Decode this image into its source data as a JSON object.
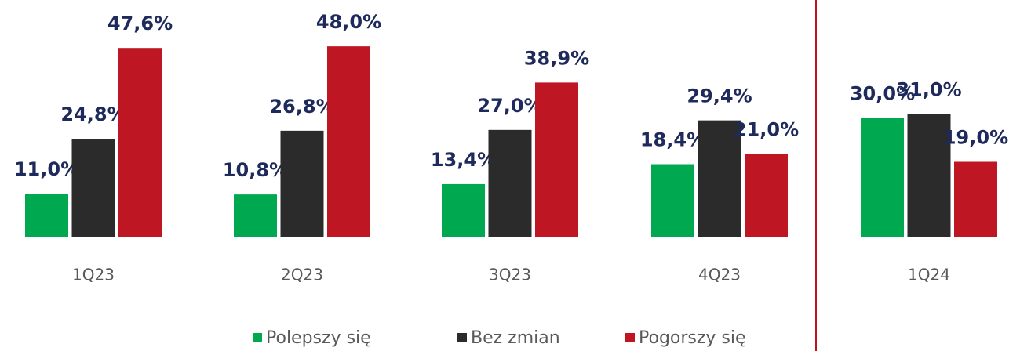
{
  "chart_data": {
    "type": "bar",
    "categories": [
      "1Q23",
      "2Q23",
      "3Q23",
      "4Q23",
      "1Q24"
    ],
    "series": [
      {
        "name": "Polepszy się",
        "color": "#00a94f",
        "values": [
          11.0,
          10.8,
          13.4,
          18.4,
          30.0
        ],
        "value_labels": [
          "11,0%",
          "10,8%",
          "13,4%",
          "18,4%",
          "30,0%"
        ]
      },
      {
        "name": "Bez zmian",
        "color": "#2b2b2b",
        "values": [
          24.8,
          26.8,
          27.0,
          29.4,
          31.0
        ],
        "value_labels": [
          "24,8%",
          "26,8%",
          "27,0%",
          "29,4%",
          "31,0%"
        ]
      },
      {
        "name": "Pogorszy się",
        "color": "#be1622",
        "values": [
          47.6,
          48.0,
          38.9,
          21.0,
          19.0
        ],
        "value_labels": [
          "47,6%",
          "48,0%",
          "38,9%",
          "21,0%",
          "19,0%"
        ]
      }
    ]
  }
}
